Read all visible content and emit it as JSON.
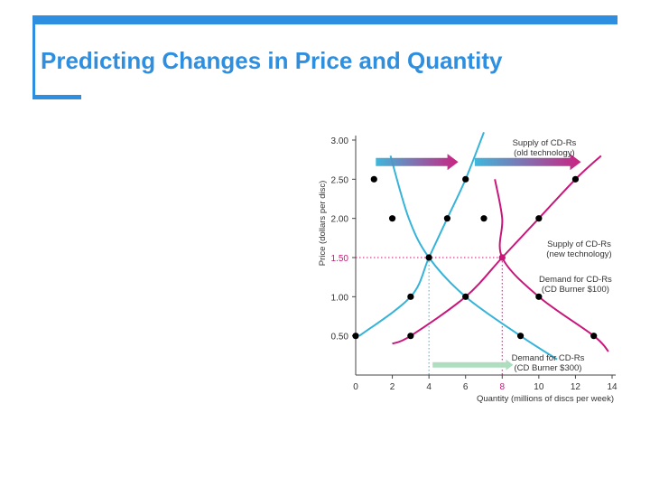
{
  "slide": {
    "title": "Predicting Changes in Price and Quantity"
  },
  "colors": {
    "accent": "#2e8fe0",
    "demand": "#35b3d9",
    "supply": "#c8177a",
    "arrow_new": "#aadcbc"
  },
  "chart_data": {
    "type": "line",
    "title": "",
    "xlabel": "Quantity (millions of discs per week)",
    "ylabel": "Price (dollars per disc)",
    "xlim": [
      0,
      14
    ],
    "ylim": [
      0,
      3.0
    ],
    "x_ticks": [
      "0",
      "2",
      "4",
      "6",
      "8",
      "10",
      "12",
      "14"
    ],
    "y_ticks": [
      "0.50",
      "1.00",
      "1.50",
      "2.00",
      "2.50",
      "3.00"
    ],
    "highlight": {
      "x": 8,
      "y": 1.5
    },
    "series": [
      {
        "name": "Demand for CD-Rs (CD Burner $300)",
        "label_lines": [
          "Demand for CD-Rs",
          "(CD Burner $300)"
        ],
        "role": "demand_old",
        "points": [
          [
            1.9,
            2.8
          ],
          [
            2.9,
            2.0
          ],
          [
            4.0,
            1.5
          ],
          [
            6.0,
            1.0
          ],
          [
            9.0,
            0.5
          ],
          [
            11.0,
            0.2
          ]
        ]
      },
      {
        "name": "Demand for CD-Rs (CD Burner $100)",
        "label_lines": [
          "Demand for CD-Rs",
          "(CD Burner $100)"
        ],
        "role": "demand_new",
        "points": [
          [
            7.6,
            2.5
          ],
          [
            8.0,
            2.0
          ],
          [
            8.0,
            1.5
          ],
          [
            10.0,
            1.0
          ],
          [
            13.0,
            0.5
          ],
          [
            13.8,
            0.3
          ]
        ]
      },
      {
        "name": "Supply of CD-Rs (old technology)",
        "label_lines": [
          "Supply of CD-Rs",
          "(old technology)"
        ],
        "role": "supply_old",
        "points": [
          [
            0.2,
            0.5
          ],
          [
            3.0,
            1.0
          ],
          [
            4.0,
            1.5
          ],
          [
            5.0,
            2.0
          ],
          [
            6.0,
            2.5
          ],
          [
            7.0,
            3.1
          ]
        ]
      },
      {
        "name": "Supply of CD-Rs (new technology)",
        "label_lines": [
          "Supply of CD-Rs",
          "(new technology)"
        ],
        "role": "supply_new",
        "points": [
          [
            2.0,
            0.4
          ],
          [
            3.0,
            0.5
          ],
          [
            6.0,
            1.0
          ],
          [
            8.0,
            1.5
          ],
          [
            10.0,
            2.0
          ],
          [
            12.0,
            2.5
          ],
          [
            13.4,
            2.8
          ]
        ]
      }
    ],
    "markers": [
      [
        1.0,
        2.5
      ],
      [
        2.0,
        2.0
      ],
      [
        4.0,
        1.5
      ],
      [
        6.0,
        1.0
      ],
      [
        9.0,
        0.5
      ],
      [
        6.0,
        2.5
      ],
      [
        5.0,
        2.0
      ],
      [
        3.0,
        1.0
      ],
      [
        0.0,
        0.5
      ],
      [
        7.0,
        2.0
      ],
      [
        8.0,
        1.5
      ],
      [
        10.0,
        1.0
      ],
      [
        13.0,
        0.5
      ],
      [
        12.0,
        2.5
      ],
      [
        10.0,
        2.0
      ],
      [
        3.0,
        0.5
      ],
      [
        8.0,
        1.5
      ]
    ],
    "arrows": [
      {
        "name": "shift-arrow-supply-left",
        "from": [
          1.1,
          2.72
        ],
        "to": [
          5.6,
          2.72
        ],
        "style": "gradient"
      },
      {
        "name": "shift-arrow-supply-right",
        "from": [
          6.5,
          2.72
        ],
        "to": [
          12.3,
          2.72
        ],
        "style": "gradient"
      },
      {
        "name": "shift-arrow-demand",
        "from": [
          4.2,
          0.13
        ],
        "to": [
          8.6,
          0.13
        ],
        "style": "green"
      }
    ]
  }
}
